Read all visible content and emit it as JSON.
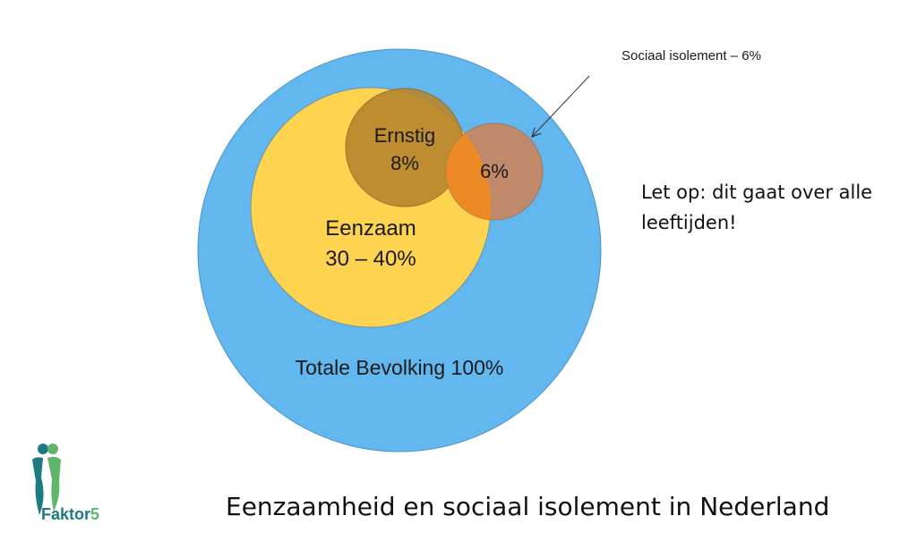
{
  "diagram": {
    "sets": [
      {
        "key": "totaal",
        "label": "Totale Bevolking 100%",
        "color": "#62b8ee"
      },
      {
        "key": "eenzaam",
        "label": [
          "Eenzaam",
          "30 – 40%"
        ],
        "color": "#fdd34f"
      },
      {
        "key": "ernstig",
        "label": [
          "Ernstig",
          "8%"
        ],
        "color": "#b8862d"
      },
      {
        "key": "isolement",
        "label": "6%",
        "color": "#c08a6a",
        "overlap_color": "#f28a1c"
      }
    ],
    "callout": "Sociaal isolement – 6%"
  },
  "note": {
    "line1": "Let op: dit gaat over alle",
    "line2": "leeftijden!"
  },
  "title": "Eenzaamheid en sociaal isolement in Nederland",
  "logo": {
    "text_prefix": "Faktor",
    "text_suffix": "5",
    "colors": {
      "teal": "#1d7a80",
      "green": "#5fb56a"
    }
  }
}
